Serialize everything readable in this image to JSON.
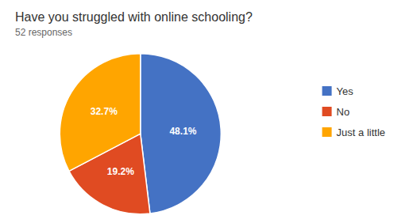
{
  "chart_data": {
    "type": "pie",
    "title": "Have you struggled with online schooling?",
    "subtitle": "52 responses",
    "categories": [
      "Yes",
      "No",
      "Just a little"
    ],
    "values": [
      48.1,
      19.2,
      32.7
    ],
    "value_labels": [
      "48.1%",
      "19.2%",
      "32.7%"
    ],
    "colors": [
      "#4472C4",
      "#E04B22",
      "#FFA500"
    ],
    "data_labels": true,
    "legend": "right"
  }
}
